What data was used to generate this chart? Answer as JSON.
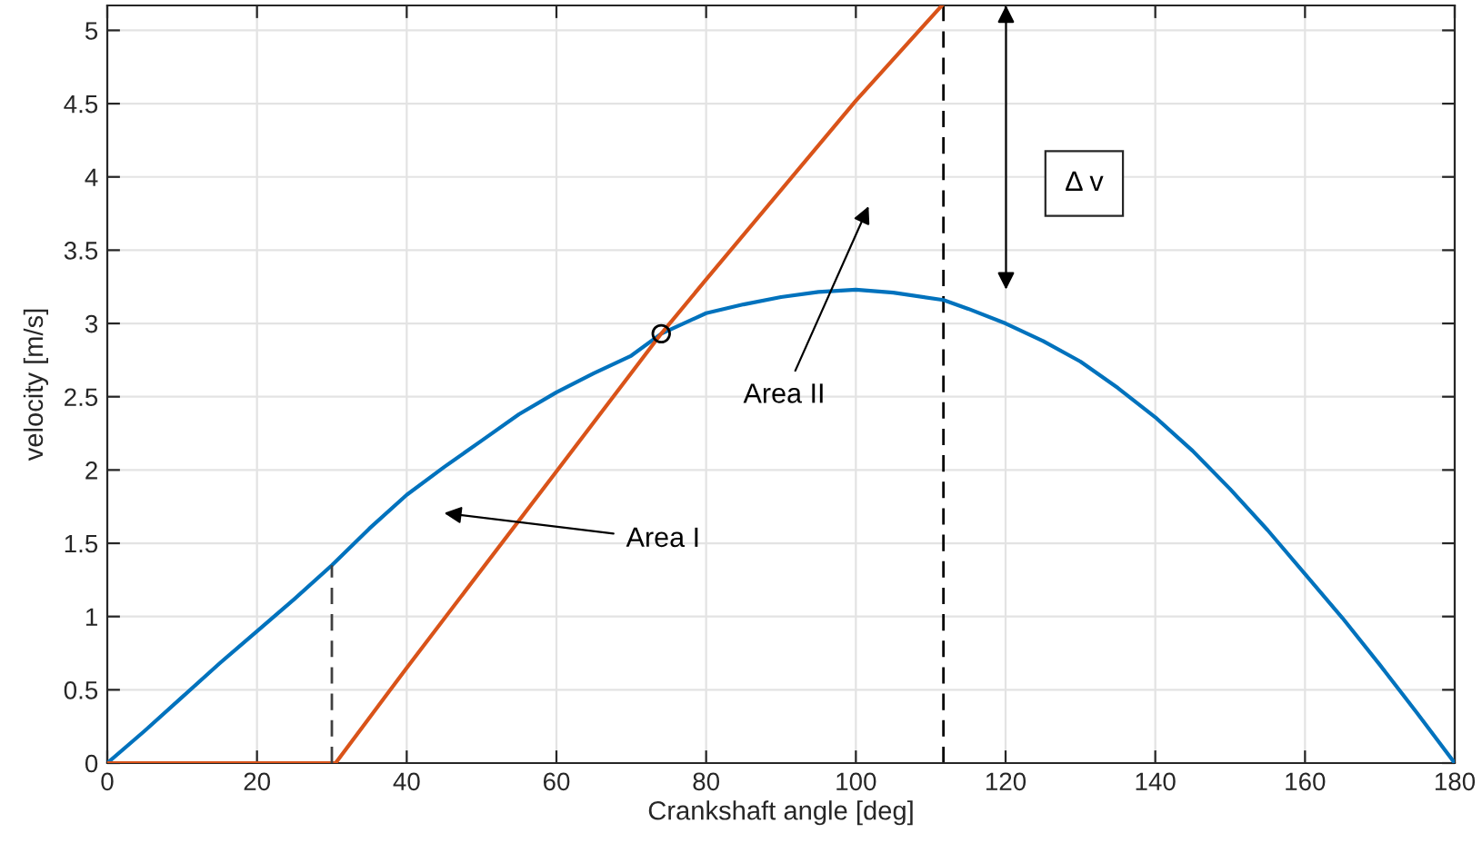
{
  "chart_data": {
    "type": "line",
    "xlabel": "Crankshaft angle [deg]",
    "ylabel": "velocity [m/s]",
    "xlim": [
      0,
      180
    ],
    "ylim": [
      0,
      5.17
    ],
    "xticks": [
      0,
      20,
      40,
      60,
      80,
      100,
      120,
      140,
      160,
      180
    ],
    "yticks": [
      0,
      0.5,
      1,
      1.5,
      2,
      2.5,
      3,
      3.5,
      4,
      4.5,
      5
    ],
    "grid": true,
    "line_style": "solid",
    "series": [
      {
        "color": "#0072bd",
        "x": [
          0,
          5,
          10,
          15,
          20,
          25,
          30,
          35,
          40,
          45,
          50,
          55,
          60,
          65,
          70,
          74,
          80,
          85,
          90,
          95,
          100,
          105,
          111.7,
          115,
          120,
          125,
          130,
          135,
          140,
          145,
          150,
          155,
          160,
          165,
          170,
          175,
          180
        ],
        "values": [
          0,
          0.22,
          0.45,
          0.68,
          0.9,
          1.12,
          1.35,
          1.6,
          1.83,
          2.02,
          2.2,
          2.38,
          2.53,
          2.66,
          2.78,
          2.93,
          3.07,
          3.13,
          3.18,
          3.215,
          3.23,
          3.21,
          3.16,
          3.1,
          3.0,
          2.88,
          2.74,
          2.56,
          2.36,
          2.13,
          1.87,
          1.59,
          1.29,
          0.99,
          0.67,
          0.34,
          0
        ]
      },
      {
        "color": "#d95319",
        "x": [
          0,
          30.5,
          40,
          60,
          74,
          80,
          100,
          111.5
        ],
        "values": [
          0,
          0,
          0.65,
          1.99,
          2.93,
          3.3,
          4.52,
          5.17
        ]
      },
      {
        "type": "line",
        "color": "#404040",
        "line_style": "dashed",
        "x": [
          30,
          30
        ],
        "values": [
          0,
          1.35
        ]
      },
      {
        "type": "scatter",
        "color": "#000000",
        "marker": "circle",
        "x": [
          74
        ],
        "values": [
          2.93
        ]
      }
    ],
    "ref_lines": [
      {
        "axis": "x",
        "value": 111.7,
        "color": "#000000",
        "line_style": "dashed"
      }
    ],
    "annotations": [
      "Area I",
      "Area II",
      "Δ v"
    ]
  }
}
